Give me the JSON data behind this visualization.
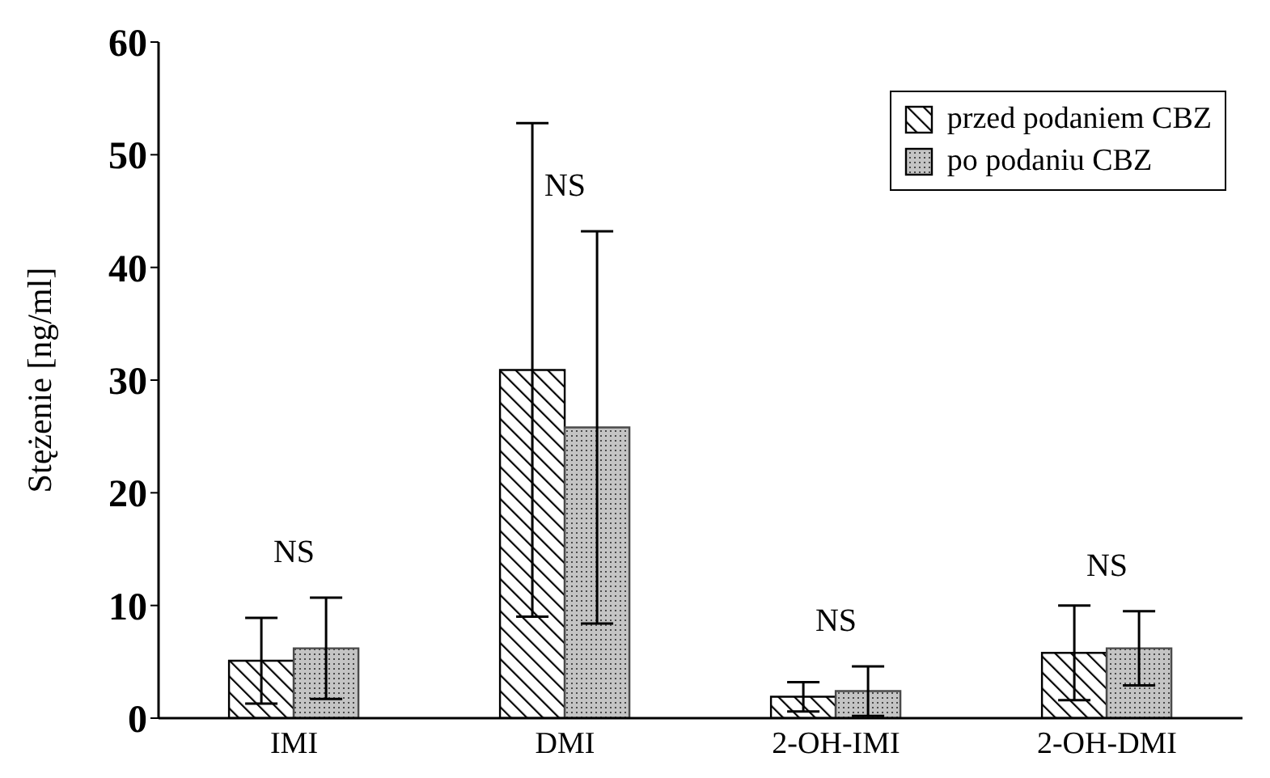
{
  "chart_data": {
    "type": "bar",
    "ylabel": "Stężenie [ng/ml]",
    "categories": [
      "IMI",
      "DMI",
      "2-OH-IMI",
      "2-OH-DMI"
    ],
    "series": [
      {
        "name": "przed podaniem CBZ",
        "color": "#000000",
        "values": [
          5.1,
          30.9,
          1.9,
          5.8
        ],
        "errors": [
          3.8,
          21.9,
          1.3,
          4.2
        ]
      },
      {
        "name": "po podaniu CBZ",
        "color": "#4a4a4a",
        "values": [
          6.2,
          25.8,
          2.4,
          6.2
        ],
        "errors": [
          4.5,
          17.4,
          2.2,
          3.3
        ]
      }
    ],
    "ylim": [
      0,
      60
    ],
    "yticks": [
      0,
      10,
      20,
      30,
      40,
      50,
      60
    ],
    "grid": false,
    "legend": "top right",
    "annotations": [
      "NS",
      "NS",
      "NS",
      "NS"
    ]
  }
}
